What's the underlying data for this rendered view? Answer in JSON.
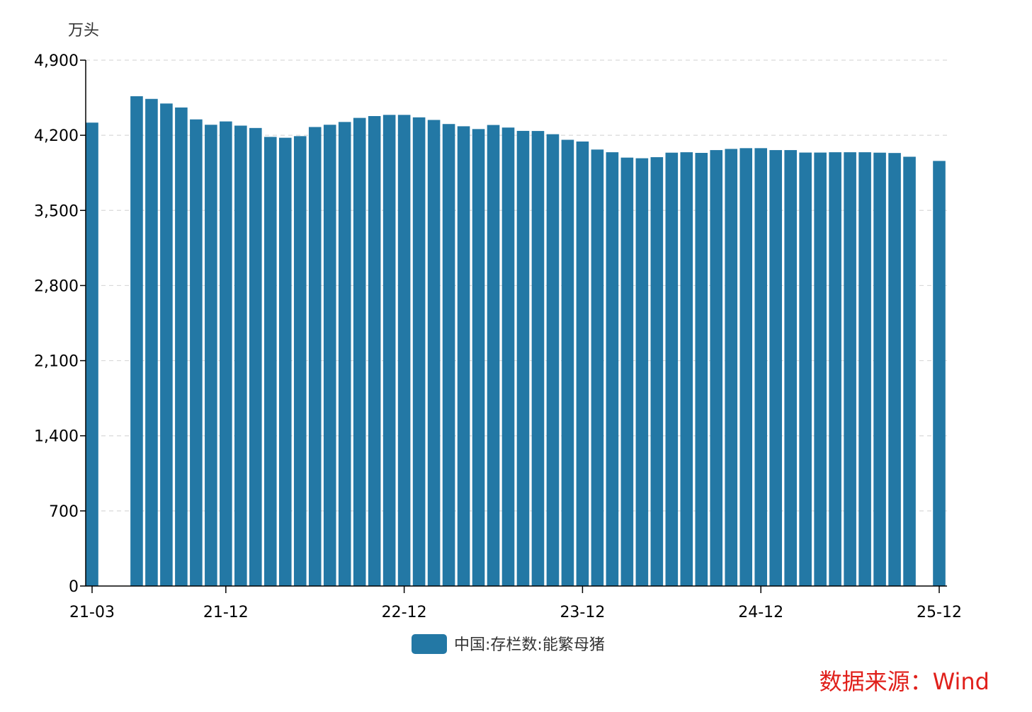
{
  "chart_data": {
    "type": "bar",
    "unit": "万头",
    "ylim": [
      0,
      4900
    ],
    "yticks": [
      0,
      700,
      1400,
      2100,
      2800,
      3500,
      4200,
      4900
    ],
    "ytick_labels": [
      "0",
      "700",
      "1,400",
      "2,100",
      "2,800",
      "3,500",
      "4,200",
      "4,900"
    ],
    "xticks": [
      "21-03",
      "21-12",
      "22-12",
      "23-12",
      "24-12",
      "25-12"
    ],
    "grid": true,
    "legend_position": "bottom",
    "categories": [
      "21-03",
      "21-04",
      "21-05",
      "21-06",
      "21-07",
      "21-08",
      "21-09",
      "21-10",
      "21-11",
      "21-12",
      "22-01",
      "22-02",
      "22-03",
      "22-04",
      "22-05",
      "22-06",
      "22-07",
      "22-08",
      "22-09",
      "22-10",
      "22-11",
      "22-12",
      "23-01",
      "23-02",
      "23-03",
      "23-04",
      "23-05",
      "23-06",
      "23-07",
      "23-08",
      "23-09",
      "23-10",
      "23-11",
      "23-12",
      "24-01",
      "24-02",
      "24-03",
      "24-04",
      "24-05",
      "24-06",
      "24-07",
      "24-08",
      "24-09",
      "24-10",
      "24-11",
      "24-12",
      "25-01",
      "25-02",
      "25-03",
      "25-04",
      "25-05",
      "25-06",
      "25-07",
      "25-08",
      "25-09",
      "25-10",
      "25-11",
      "25-12"
    ],
    "series": [
      {
        "name": "中国:存栏数:能繁母猪",
        "color": "#2378a5",
        "values": [
          4318,
          null,
          null,
          4564,
          4539,
          4496,
          4459,
          4348,
          4298,
          4329,
          4290,
          4268,
          4185,
          4177,
          4192,
          4277,
          4298,
          4324,
          4362,
          4379,
          4390,
          4390,
          4367,
          4343,
          4305,
          4284,
          4258,
          4296,
          4272,
          4241,
          4240,
          4210,
          4158,
          4142,
          4067,
          4042,
          3992,
          3986,
          3996,
          4038,
          4042,
          4036,
          4062,
          4073,
          4080,
          4080,
          4062,
          4062,
          4039,
          4039,
          4042,
          4042,
          4042,
          4038,
          4035,
          4000,
          null,
          3961
        ]
      }
    ]
  },
  "source": "数据来源：Wind"
}
